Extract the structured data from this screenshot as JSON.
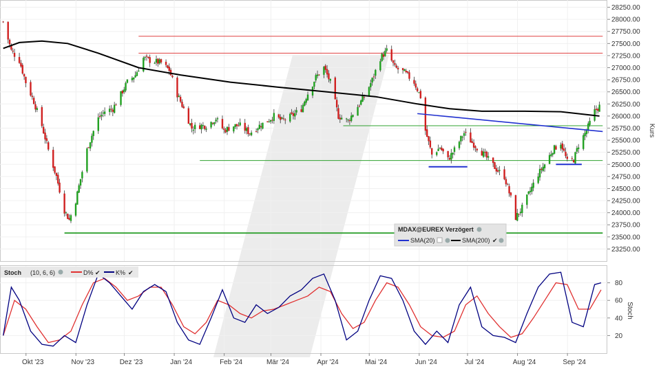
{
  "chart_data": [
    {
      "type": "candlestick",
      "title": "MDAX@EUREX Verzögert",
      "ylabel": "Kurs",
      "ylim": [
        23000,
        28400
      ],
      "y_ticks": [
        "28250.00",
        "28000.00",
        "27750.00",
        "27500.00",
        "27250.00",
        "27000.00",
        "26750.00",
        "26500.00",
        "26250.00",
        "26000.00",
        "25750.00",
        "25500.00",
        "25250.00",
        "25000.00",
        "24750.00",
        "24500.00",
        "24250.00",
        "24000.00",
        "23750.00",
        "23500.00",
        "23250.00"
      ],
      "x_ticks": [
        "Okt '23",
        "Nov '23",
        "Dez '23",
        "Jan '24",
        "Feb '24",
        "Mär '24",
        "Apr '24",
        "Mai '24",
        "Jun '24",
        "Jul '24",
        "Aug '24",
        "Sep '24"
      ],
      "legend": [
        "SMA(20)",
        "SMA(200)"
      ],
      "close_anchors": [
        [
          "2023-09-22",
          27950
        ],
        [
          "2023-09-27",
          27350
        ],
        [
          "2023-10-02",
          27150
        ],
        [
          "2023-10-06",
          26700
        ],
        [
          "2023-10-11",
          26300
        ],
        [
          "2023-10-16",
          25800
        ],
        [
          "2023-10-20",
          25300
        ],
        [
          "2023-10-25",
          24750
        ],
        [
          "2023-10-30",
          24050
        ],
        [
          "2023-11-02",
          23850
        ],
        [
          "2023-11-06",
          24250
        ],
        [
          "2023-11-09",
          24700
        ],
        [
          "2023-11-13",
          25300
        ],
        [
          "2023-11-16",
          25600
        ],
        [
          "2023-11-20",
          25950
        ],
        [
          "2023-11-24",
          26100
        ],
        [
          "2023-11-29",
          26150
        ],
        [
          "2023-12-04",
          26450
        ],
        [
          "2023-12-08",
          26700
        ],
        [
          "2023-12-13",
          26850
        ],
        [
          "2023-12-18",
          27200
        ],
        [
          "2023-12-22",
          27150
        ],
        [
          "2023-12-29",
          27100
        ],
        [
          "2024-01-03",
          26950
        ],
        [
          "2024-01-08",
          26450
        ],
        [
          "2024-01-12",
          26150
        ],
        [
          "2024-01-17",
          25750
        ],
        [
          "2024-01-22",
          25800
        ],
        [
          "2024-01-26",
          25800
        ],
        [
          "2024-02-01",
          25950
        ],
        [
          "2024-02-06",
          25700
        ],
        [
          "2024-02-12",
          25800
        ],
        [
          "2024-02-16",
          25800
        ],
        [
          "2024-02-22",
          25650
        ],
        [
          "2024-02-28",
          25800
        ],
        [
          "2024-03-04",
          25900
        ],
        [
          "2024-03-08",
          26000
        ],
        [
          "2024-03-13",
          25900
        ],
        [
          "2024-03-19",
          26000
        ],
        [
          "2024-03-25",
          26150
        ],
        [
          "2024-03-28",
          26400
        ],
        [
          "2024-04-03",
          26800
        ],
        [
          "2024-04-08",
          27000
        ],
        [
          "2024-04-12",
          26700
        ],
        [
          "2024-04-17",
          26000
        ],
        [
          "2024-04-23",
          25900
        ],
        [
          "2024-04-29",
          26200
        ],
        [
          "2024-05-03",
          26400
        ],
        [
          "2024-05-08",
          26750
        ],
        [
          "2024-05-13",
          27200
        ],
        [
          "2024-05-17",
          27350
        ],
        [
          "2024-05-22",
          27000
        ],
        [
          "2024-05-28",
          26900
        ],
        [
          "2024-06-03",
          26700
        ],
        [
          "2024-06-07",
          26400
        ],
        [
          "2024-06-10",
          25700
        ],
        [
          "2024-06-14",
          25200
        ],
        [
          "2024-06-19",
          25350
        ],
        [
          "2024-06-24",
          25100
        ],
        [
          "2024-06-28",
          25300
        ],
        [
          "2024-07-04",
          25650
        ],
        [
          "2024-07-09",
          25450
        ],
        [
          "2024-07-15",
          25250
        ],
        [
          "2024-07-19",
          25100
        ],
        [
          "2024-07-24",
          24900
        ],
        [
          "2024-07-29",
          24750
        ],
        [
          "2024-08-02",
          24300
        ],
        [
          "2024-08-05",
          23900
        ],
        [
          "2024-08-09",
          24100
        ],
        [
          "2024-08-14",
          24450
        ],
        [
          "2024-08-19",
          24800
        ],
        [
          "2024-08-23",
          25000
        ],
        [
          "2024-08-28",
          25300
        ],
        [
          "2024-09-02",
          25450
        ],
        [
          "2024-09-06",
          25050
        ],
        [
          "2024-09-10",
          25100
        ],
        [
          "2024-09-13",
          25400
        ],
        [
          "2024-09-18",
          25700
        ],
        [
          "2024-09-23",
          26100
        ],
        [
          "2024-09-26",
          26200
        ]
      ],
      "sma200_anchors": [
        [
          "2023-09-22",
          27400
        ],
        [
          "2023-10-02",
          27520
        ],
        [
          "2023-10-16",
          27550
        ],
        [
          "2023-11-01",
          27500
        ],
        [
          "2023-11-20",
          27300
        ],
        [
          "2023-12-15",
          27000
        ],
        [
          "2024-01-10",
          26850
        ],
        [
          "2024-02-10",
          26700
        ],
        [
          "2024-03-10",
          26600
        ],
        [
          "2024-04-10",
          26500
        ],
        [
          "2024-05-10",
          26400
        ],
        [
          "2024-06-05",
          26250
        ],
        [
          "2024-06-25",
          26150
        ],
        [
          "2024-07-15",
          26100
        ],
        [
          "2024-08-10",
          26100
        ],
        [
          "2024-09-02",
          26090
        ],
        [
          "2024-09-26",
          26000
        ]
      ],
      "horizontal_lines": [
        {
          "color": "red",
          "y": 27650,
          "from": "2023-12-15",
          "to": "2024-09-28"
        },
        {
          "color": "red",
          "y": 27300,
          "from": "2023-12-15",
          "to": "2024-09-28"
        },
        {
          "color": "green",
          "y": 25800,
          "from": "2024-04-20",
          "to": "2024-09-28"
        },
        {
          "color": "green",
          "y": 25080,
          "from": "2024-01-22",
          "to": "2024-09-28"
        },
        {
          "color": "green",
          "y": 23580,
          "from": "2023-10-30",
          "to": "2024-09-28"
        }
      ],
      "support_markers": [
        {
          "y": 24950,
          "from": "2024-06-12",
          "to": "2024-07-06"
        },
        {
          "y": 25000,
          "from": "2024-08-30",
          "to": "2024-09-15"
        }
      ],
      "trendline": {
        "from": [
          "2024-06-05",
          26050
        ],
        "to": [
          "2024-09-28",
          25680
        ]
      }
    },
    {
      "type": "line",
      "title": "Stoch",
      "params": "(10, 6, 6)",
      "ylabel": "Stoch",
      "ylim": [
        0,
        100
      ],
      "y_ticks": [
        "80",
        "60",
        "40",
        "20"
      ],
      "series": [
        {
          "name": "D%",
          "color": "#e03030",
          "values": [
            [
              "2023-09-22",
              20
            ],
            [
              "2023-09-29",
              60
            ],
            [
              "2023-10-06",
              50
            ],
            [
              "2023-10-13",
              30
            ],
            [
              "2023-10-20",
              12
            ],
            [
              "2023-10-27",
              15
            ],
            [
              "2023-11-03",
              25
            ],
            [
              "2023-11-10",
              55
            ],
            [
              "2023-11-17",
              80
            ],
            [
              "2023-11-24",
              85
            ],
            [
              "2023-12-01",
              75
            ],
            [
              "2023-12-08",
              60
            ],
            [
              "2023-12-15",
              65
            ],
            [
              "2023-12-22",
              75
            ],
            [
              "2023-12-29",
              75
            ],
            [
              "2024-01-05",
              55
            ],
            [
              "2024-01-12",
              30
            ],
            [
              "2024-01-19",
              22
            ],
            [
              "2024-01-26",
              35
            ],
            [
              "2024-02-02",
              60
            ],
            [
              "2024-02-09",
              55
            ],
            [
              "2024-02-16",
              45
            ],
            [
              "2024-02-23",
              40
            ],
            [
              "2024-03-01",
              48
            ],
            [
              "2024-03-08",
              50
            ],
            [
              "2024-03-15",
              55
            ],
            [
              "2024-03-22",
              60
            ],
            [
              "2024-03-29",
              65
            ],
            [
              "2024-04-05",
              75
            ],
            [
              "2024-04-12",
              70
            ],
            [
              "2024-04-19",
              45
            ],
            [
              "2024-04-26",
              28
            ],
            [
              "2024-05-03",
              35
            ],
            [
              "2024-05-10",
              60
            ],
            [
              "2024-05-17",
              80
            ],
            [
              "2024-05-24",
              75
            ],
            [
              "2024-05-31",
              55
            ],
            [
              "2024-06-07",
              30
            ],
            [
              "2024-06-14",
              20
            ],
            [
              "2024-06-21",
              18
            ],
            [
              "2024-06-28",
              25
            ],
            [
              "2024-07-05",
              55
            ],
            [
              "2024-07-12",
              65
            ],
            [
              "2024-07-19",
              45
            ],
            [
              "2024-07-26",
              30
            ],
            [
              "2024-08-02",
              18
            ],
            [
              "2024-08-09",
              22
            ],
            [
              "2024-08-16",
              40
            ],
            [
              "2024-08-23",
              60
            ],
            [
              "2024-08-30",
              80
            ],
            [
              "2024-09-06",
              78
            ],
            [
              "2024-09-13",
              50
            ],
            [
              "2024-09-20",
              50
            ],
            [
              "2024-09-27",
              72
            ]
          ]
        },
        {
          "name": "K%",
          "color": "#000080",
          "values": [
            [
              "2023-09-22",
              20
            ],
            [
              "2023-09-27",
              75
            ],
            [
              "2023-10-02",
              60
            ],
            [
              "2023-10-09",
              25
            ],
            [
              "2023-10-16",
              10
            ],
            [
              "2023-10-23",
              8
            ],
            [
              "2023-10-30",
              20
            ],
            [
              "2023-11-06",
              12
            ],
            [
              "2023-11-13",
              55
            ],
            [
              "2023-11-20",
              90
            ],
            [
              "2023-11-27",
              80
            ],
            [
              "2023-12-04",
              65
            ],
            [
              "2023-12-11",
              50
            ],
            [
              "2023-12-18",
              70
            ],
            [
              "2023-12-25",
              78
            ],
            [
              "2024-01-01",
              70
            ],
            [
              "2024-01-08",
              35
            ],
            [
              "2024-01-15",
              15
            ],
            [
              "2024-01-22",
              10
            ],
            [
              "2024-01-29",
              40
            ],
            [
              "2024-02-05",
              72
            ],
            [
              "2024-02-12",
              40
            ],
            [
              "2024-02-19",
              35
            ],
            [
              "2024-02-26",
              55
            ],
            [
              "2024-03-04",
              45
            ],
            [
              "2024-03-11",
              52
            ],
            [
              "2024-03-18",
              65
            ],
            [
              "2024-03-25",
              72
            ],
            [
              "2024-04-01",
              85
            ],
            [
              "2024-04-08",
              90
            ],
            [
              "2024-04-15",
              60
            ],
            [
              "2024-04-22",
              15
            ],
            [
              "2024-04-29",
              25
            ],
            [
              "2024-05-06",
              60
            ],
            [
              "2024-05-13",
              88
            ],
            [
              "2024-05-20",
              85
            ],
            [
              "2024-05-27",
              60
            ],
            [
              "2024-06-03",
              25
            ],
            [
              "2024-06-10",
              10
            ],
            [
              "2024-06-17",
              25
            ],
            [
              "2024-06-24",
              12
            ],
            [
              "2024-07-01",
              55
            ],
            [
              "2024-07-08",
              75
            ],
            [
              "2024-07-15",
              30
            ],
            [
              "2024-07-22",
              20
            ],
            [
              "2024-07-29",
              18
            ],
            [
              "2024-08-05",
              12
            ],
            [
              "2024-08-12",
              45
            ],
            [
              "2024-08-19",
              75
            ],
            [
              "2024-08-26",
              90
            ],
            [
              "2024-09-02",
              92
            ],
            [
              "2024-09-09",
              35
            ],
            [
              "2024-09-16",
              30
            ],
            [
              "2024-09-23",
              78
            ],
            [
              "2024-09-27",
              80
            ]
          ]
        }
      ]
    }
  ]
}
